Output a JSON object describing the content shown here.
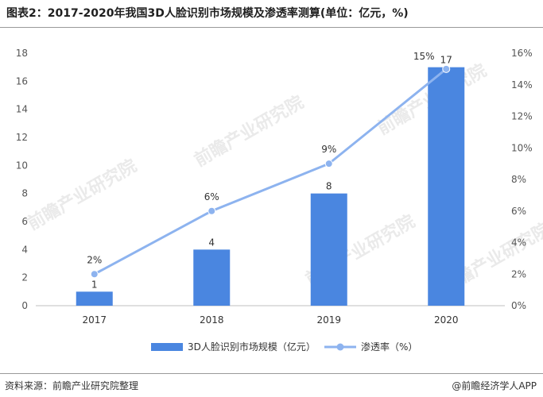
{
  "title": "图表2：2017-2020年我国3D人脸识别市场规模及渗透率测算(单位：亿元，%)",
  "footer": {
    "source": "资料来源：前瞻产业研究院整理",
    "brand": "@前瞻经济学人APP"
  },
  "watermark": "前瞻产业研究院",
  "colors": {
    "bar": "#4a86e0",
    "line": "#8db3ef",
    "marker": "#8db3ef"
  },
  "chart_data": {
    "type": "bar",
    "categories": [
      "2017",
      "2018",
      "2019",
      "2020"
    ],
    "series": [
      {
        "name": "3D人脸识别市场规模（亿元）",
        "type": "bar",
        "axis": "left",
        "values": [
          1,
          4,
          8,
          17
        ],
        "labels": [
          "1",
          "4",
          "8",
          "17"
        ]
      },
      {
        "name": "渗透率（%）",
        "type": "line",
        "axis": "right",
        "values": [
          2,
          6,
          9,
          15
        ],
        "labels": [
          "2%",
          "6%",
          "9%",
          "15%"
        ]
      }
    ],
    "left_axis": {
      "min": 0,
      "max": 18,
      "step": 2,
      "ticks": [
        "0",
        "2",
        "4",
        "6",
        "8",
        "10",
        "12",
        "14",
        "16",
        "18"
      ]
    },
    "right_axis": {
      "min": 0,
      "max": 16,
      "step": 2,
      "ticks": [
        "0%",
        "2%",
        "4%",
        "6%",
        "8%",
        "10%",
        "12%",
        "14%",
        "16%"
      ]
    },
    "grid": false,
    "legend_position": "bottom"
  }
}
